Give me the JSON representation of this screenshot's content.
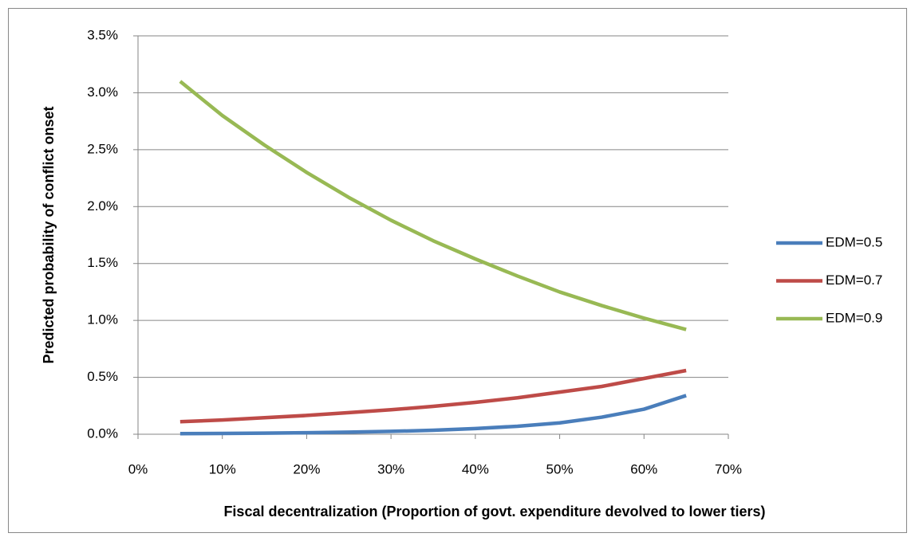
{
  "chart_data": {
    "type": "line",
    "x_label": "Fiscal decentralization (Proportion of govt. expenditure devolved to lower tiers)",
    "y_label": "Predicted probability of conflict onset",
    "x": [
      5,
      10,
      15,
      20,
      25,
      30,
      35,
      40,
      45,
      50,
      55,
      60,
      65
    ],
    "series": [
      {
        "name": "EDM=0.5",
        "color": "#4a7ebb",
        "values": [
          0.005,
          0.007,
          0.01,
          0.013,
          0.018,
          0.025,
          0.035,
          0.05,
          0.07,
          0.1,
          0.15,
          0.22,
          0.34
        ]
      },
      {
        "name": "EDM=0.7",
        "color": "#be4b48",
        "values": [
          0.11,
          0.125,
          0.145,
          0.165,
          0.19,
          0.215,
          0.245,
          0.28,
          0.32,
          0.37,
          0.42,
          0.49,
          0.56
        ]
      },
      {
        "name": "EDM=0.9",
        "color": "#98b954",
        "values": [
          3.1,
          2.8,
          2.54,
          2.3,
          2.08,
          1.88,
          1.7,
          1.54,
          1.39,
          1.25,
          1.13,
          1.02,
          0.92
        ]
      }
    ],
    "xlim": [
      0,
      70
    ],
    "xticks": [
      {
        "value": 0,
        "label": "0%"
      },
      {
        "value": 10,
        "label": "10%"
      },
      {
        "value": 20,
        "label": "20%"
      },
      {
        "value": 30,
        "label": "30%"
      },
      {
        "value": 40,
        "label": "40%"
      },
      {
        "value": 50,
        "label": "50%"
      },
      {
        "value": 60,
        "label": "60%"
      },
      {
        "value": 70,
        "label": "70%"
      }
    ],
    "ylim": [
      0,
      3.5
    ],
    "yticks": [
      {
        "value": 0,
        "label": "0.0%"
      },
      {
        "value": 0.5,
        "label": "0.5%"
      },
      {
        "value": 1,
        "label": "1.0%"
      },
      {
        "value": 1.5,
        "label": "1.5%"
      },
      {
        "value": 2,
        "label": "2.0%"
      },
      {
        "value": 2.5,
        "label": "2.5%"
      },
      {
        "value": 3,
        "label": "3.0%"
      },
      {
        "value": 3.5,
        "label": "3.5%"
      }
    ],
    "grid": true,
    "legend": "right"
  }
}
